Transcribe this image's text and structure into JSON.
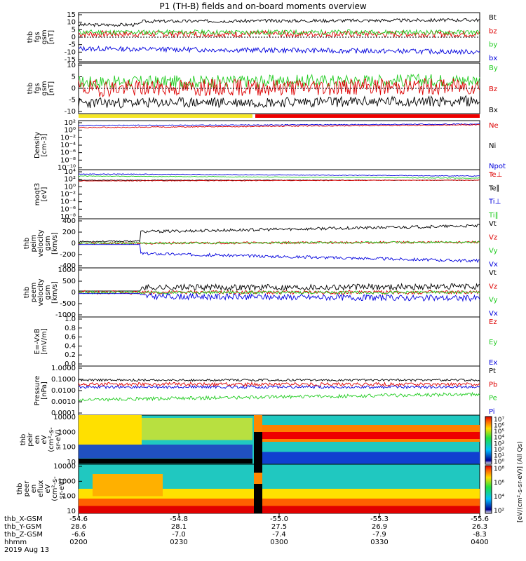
{
  "title": "P1 (TH-B) fields and on-board moments overview",
  "date": "2019 Aug 13",
  "panels": [
    {
      "ylabel": "thb\nfgs\ngsm\n[nT]",
      "ticks": [
        "15",
        "10",
        "5",
        "0",
        "-5",
        "-10",
        "-15"
      ],
      "legend": [
        {
          "name": "Bt",
          "color": "#000"
        },
        {
          "name": "bz",
          "color": "#d00"
        },
        {
          "name": "by",
          "color": "#2c2"
        },
        {
          "name": "bx",
          "color": "#00d"
        }
      ]
    },
    {
      "ylabel": "thb\nfgs\ngsm\n[nT]",
      "ticks": [
        "10",
        "5",
        "0",
        "-5",
        "-10"
      ],
      "legend": [
        {
          "name": "By",
          "color": "#2c2"
        },
        {
          "name": "Bz",
          "color": "#d00"
        },
        {
          "name": "Bx",
          "color": "#000"
        }
      ]
    },
    {
      "ylabel": "Density\n[cm-3]",
      "ticks": [
        "10²",
        "10⁰",
        "10⁻²",
        "10⁻⁴",
        "10⁻⁶",
        "10⁻⁸",
        "10⁻¹⁰"
      ],
      "legend": [
        {
          "name": "Ne",
          "color": "#d00"
        },
        {
          "name": "Ni",
          "color": "#000"
        },
        {
          "name": "Npot",
          "color": "#00d"
        }
      ]
    },
    {
      "ylabel": "moqt3\n[eV]",
      "ticks": [
        "10⁴",
        "10²",
        "10⁰",
        "10⁻²",
        "10⁻⁴",
        "10⁻⁶",
        "10⁻⁸"
      ],
      "legend": [
        {
          "name": "Te⊥",
          "color": "#d00"
        },
        {
          "name": "Te∥",
          "color": "#000"
        },
        {
          "name": "Ti⊥",
          "color": "#00d"
        },
        {
          "name": "Ti∥",
          "color": "#2c2"
        }
      ]
    },
    {
      "ylabel": "thb\npeim\nvelocity\ngsm\n[km/s]",
      "ticks": [
        "400",
        "200",
        "0",
        "-200",
        "-400"
      ],
      "legend": [
        {
          "name": "Vt",
          "color": "#000"
        },
        {
          "name": "Vz",
          "color": "#d00"
        },
        {
          "name": "Vy",
          "color": "#2c2"
        },
        {
          "name": "Vx",
          "color": "#00d"
        }
      ]
    },
    {
      "ylabel": "thb\npeem\nvelocity\ngsm\n[km/s]",
      "ticks": [
        "1000",
        "500",
        "0",
        "-500",
        "-1000"
      ],
      "legend": [
        {
          "name": "Vt",
          "color": "#000"
        },
        {
          "name": "Vz",
          "color": "#d00"
        },
        {
          "name": "Vy",
          "color": "#2c2"
        },
        {
          "name": "Vx",
          "color": "#00d"
        }
      ]
    },
    {
      "ylabel": "E=-VxB\n[mV/m]",
      "ticks": [
        "1.0",
        "0.8",
        "0.6",
        "0.4",
        "0.2",
        "0.0"
      ],
      "legend": [
        {
          "name": "Ez",
          "color": "#d00"
        },
        {
          "name": "Ey",
          "color": "#2c2"
        },
        {
          "name": "Ex",
          "color": "#00d"
        }
      ]
    },
    {
      "ylabel": "Pressure\n[nPa]",
      "ticks": [
        "1.0000",
        "0.1000",
        "0.0100",
        "0.0010",
        "0.0001"
      ],
      "legend": [
        {
          "name": "Pt",
          "color": "#000"
        },
        {
          "name": "Pb",
          "color": "#d00"
        },
        {
          "name": "Pe",
          "color": "#2c2"
        },
        {
          "name": "Pi",
          "color": "#00d"
        }
      ]
    },
    {
      "ylabel": "thb\npeir\nen\neV\n(cm²-s-\nsr-eV)",
      "ticks": [
        "10000",
        "1000",
        "100",
        "10"
      ],
      "legend": []
    },
    {
      "ylabel": "thb\npeer\nen\neflux\neV\n(cm²-s-\nsr-eV)",
      "ticks": [
        "10000",
        "1000",
        "100",
        "10"
      ],
      "legend": []
    }
  ],
  "colorbar1": {
    "ticks": [
      "10⁷",
      "10⁶",
      "10⁵",
      "10⁴",
      "10³",
      "10²",
      "10¹",
      "10⁰"
    ]
  },
  "colorbar2": {
    "ticks": [
      "10⁸",
      "10⁶",
      "10⁴",
      "10²"
    ]
  },
  "colorbar_label": "[eV/(cm²-s-sr-eV)] (All Qs)",
  "footer_rows": [
    {
      "label": "thb_X-GSM",
      "vals": [
        "-54.6",
        "-54.8",
        "-55.0",
        "-55.3",
        "-55.6"
      ]
    },
    {
      "label": "thb_Y-GSM",
      "vals": [
        "28.6",
        "28.1",
        "27.5",
        "26.9",
        "26.3"
      ]
    },
    {
      "label": "thb_Z-GSM",
      "vals": [
        "-6.6",
        "-7.0",
        "-7.4",
        "-7.9",
        "-8.3"
      ]
    },
    {
      "label": "hhmm",
      "vals": [
        "0200",
        "0230",
        "0300",
        "0330",
        "0400"
      ]
    }
  ],
  "chart_data": {
    "type": "line",
    "title": "P1 (TH-B) fields and on-board moments overview",
    "x_time_hhmm": [
      "0200",
      "0230",
      "0300",
      "0330",
      "0400"
    ],
    "series": [
      {
        "name": "Bt",
        "values": [
          8,
          5,
          8,
          9,
          10,
          10,
          9,
          9
        ]
      },
      {
        "name": "bz",
        "values": [
          2,
          3,
          2,
          1,
          3,
          2,
          1,
          2
        ]
      },
      {
        "name": "by",
        "values": [
          3,
          2,
          1,
          4,
          4,
          3,
          4,
          3
        ]
      },
      {
        "name": "bx",
        "values": [
          -7,
          -8,
          -7,
          -8,
          -9,
          -9,
          -9,
          -9
        ]
      }
    ],
    "ylim": [
      -15,
      15
    ]
  }
}
